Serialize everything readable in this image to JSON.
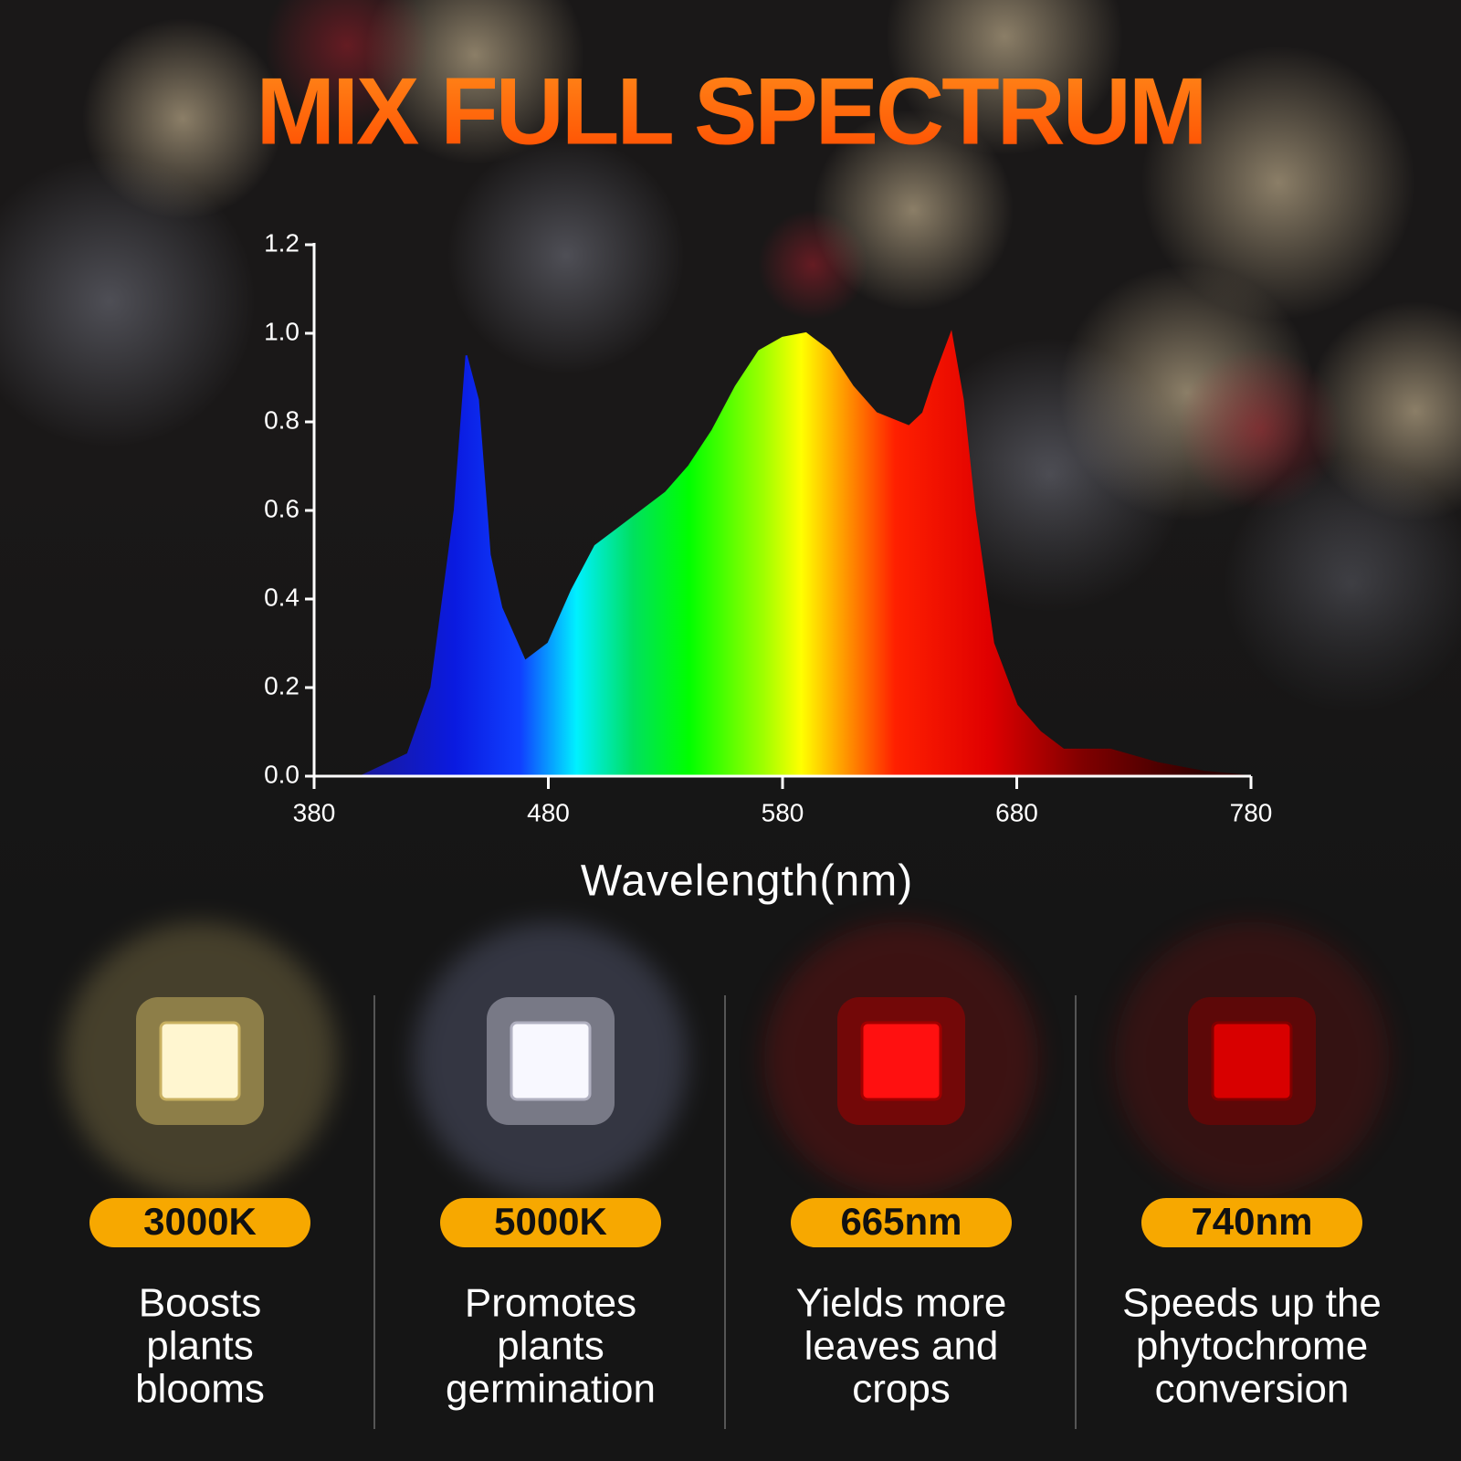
{
  "chart_data": {
    "type": "area",
    "title": "MIX FULL SPECTRUM",
    "x_label": "Wavelength(nm)",
    "x": [
      400,
      420,
      430,
      440,
      445,
      450,
      455,
      460,
      470,
      480,
      490,
      500,
      510,
      520,
      530,
      540,
      550,
      560,
      570,
      580,
      590,
      600,
      610,
      620,
      634,
      640,
      645,
      652,
      657,
      662,
      670,
      680,
      690,
      700,
      720,
      740,
      760,
      780
    ],
    "values": [
      0.0,
      0.05,
      0.2,
      0.6,
      0.95,
      0.85,
      0.5,
      0.38,
      0.26,
      0.3,
      0.42,
      0.52,
      0.56,
      0.6,
      0.64,
      0.7,
      0.78,
      0.88,
      0.96,
      0.99,
      1.0,
      0.96,
      0.88,
      0.82,
      0.79,
      0.82,
      0.9,
      1.0,
      0.85,
      0.6,
      0.3,
      0.16,
      0.1,
      0.06,
      0.06,
      0.03,
      0.01,
      0.0
    ],
    "xlim": [
      380,
      780
    ],
    "xticks": [
      380,
      480,
      580,
      680,
      780
    ],
    "ylim": [
      0,
      1.2
    ],
    "yticks": [
      {
        "value": 0,
        "label": "0.0"
      },
      0.2,
      0.4,
      0.6,
      0.8,
      {
        "value": 1,
        "label": "1.0"
      },
      1.2
    ]
  },
  "features": [
    {
      "label": "3000K",
      "description": [
        "Boosts",
        "plants",
        "blooms"
      ]
    },
    {
      "label": "5000K",
      "description": [
        "Promotes",
        "plants",
        "germination"
      ]
    },
    {
      "label": "665nm",
      "description": [
        "Yields more",
        "leaves and",
        "crops"
      ]
    },
    {
      "label": "740nm",
      "description": [
        "Speeds up the",
        "phytochrome",
        "conversion"
      ]
    }
  ]
}
